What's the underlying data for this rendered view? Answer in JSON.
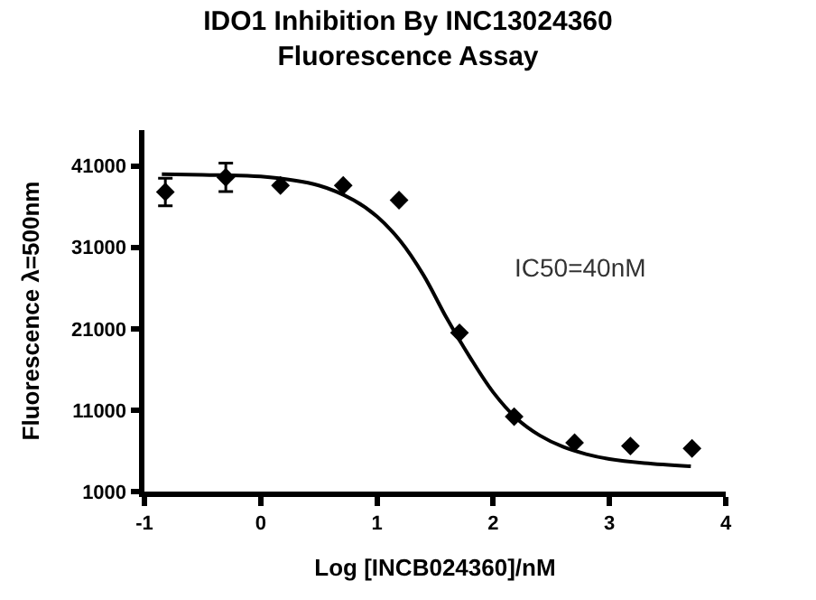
{
  "chart_data": {
    "type": "scatter",
    "title": "IDO1 Inhibition By INC13024360\nFluorescence Assay",
    "xlabel": "Log [INCB024360]/nM",
    "ylabel": "Fluorescence λ=500nm",
    "series": [
      {
        "color": "#000000",
        "marker": "diamond",
        "x": [
          -0.82,
          -0.3,
          0.17,
          0.71,
          1.19,
          1.71,
          2.18,
          2.7,
          3.18,
          3.71
        ],
        "values": [
          37800,
          39600,
          38600,
          38600,
          36800,
          20500,
          10200,
          7000,
          6600,
          6300
        ],
        "errors": [
          1700,
          1750,
          null,
          null,
          null,
          null,
          null,
          null,
          null,
          null
        ]
      },
      {
        "type": "line",
        "color": "#000000",
        "x": [
          -0.85,
          -0.5,
          0,
          0.5,
          0.8,
          1.0,
          1.2,
          1.4,
          1.6,
          1.8,
          2.0,
          2.2,
          2.4,
          2.6,
          2.8,
          3.0,
          3.3,
          3.7
        ],
        "values": [
          40000,
          39900,
          39700,
          38600,
          36800,
          34800,
          31800,
          27600,
          22300,
          17500,
          13200,
          10000,
          7900,
          6500,
          5600,
          5000,
          4500,
          4100
        ]
      }
    ],
    "annotations": [
      "IC50=40nM"
    ],
    "xlim": [
      -1,
      4
    ],
    "xticks": [
      -1,
      0,
      1,
      2,
      3,
      4
    ],
    "ylim": [
      1000,
      45400
    ],
    "yticks": [
      1000,
      11000,
      21000,
      31000,
      41000
    ]
  }
}
